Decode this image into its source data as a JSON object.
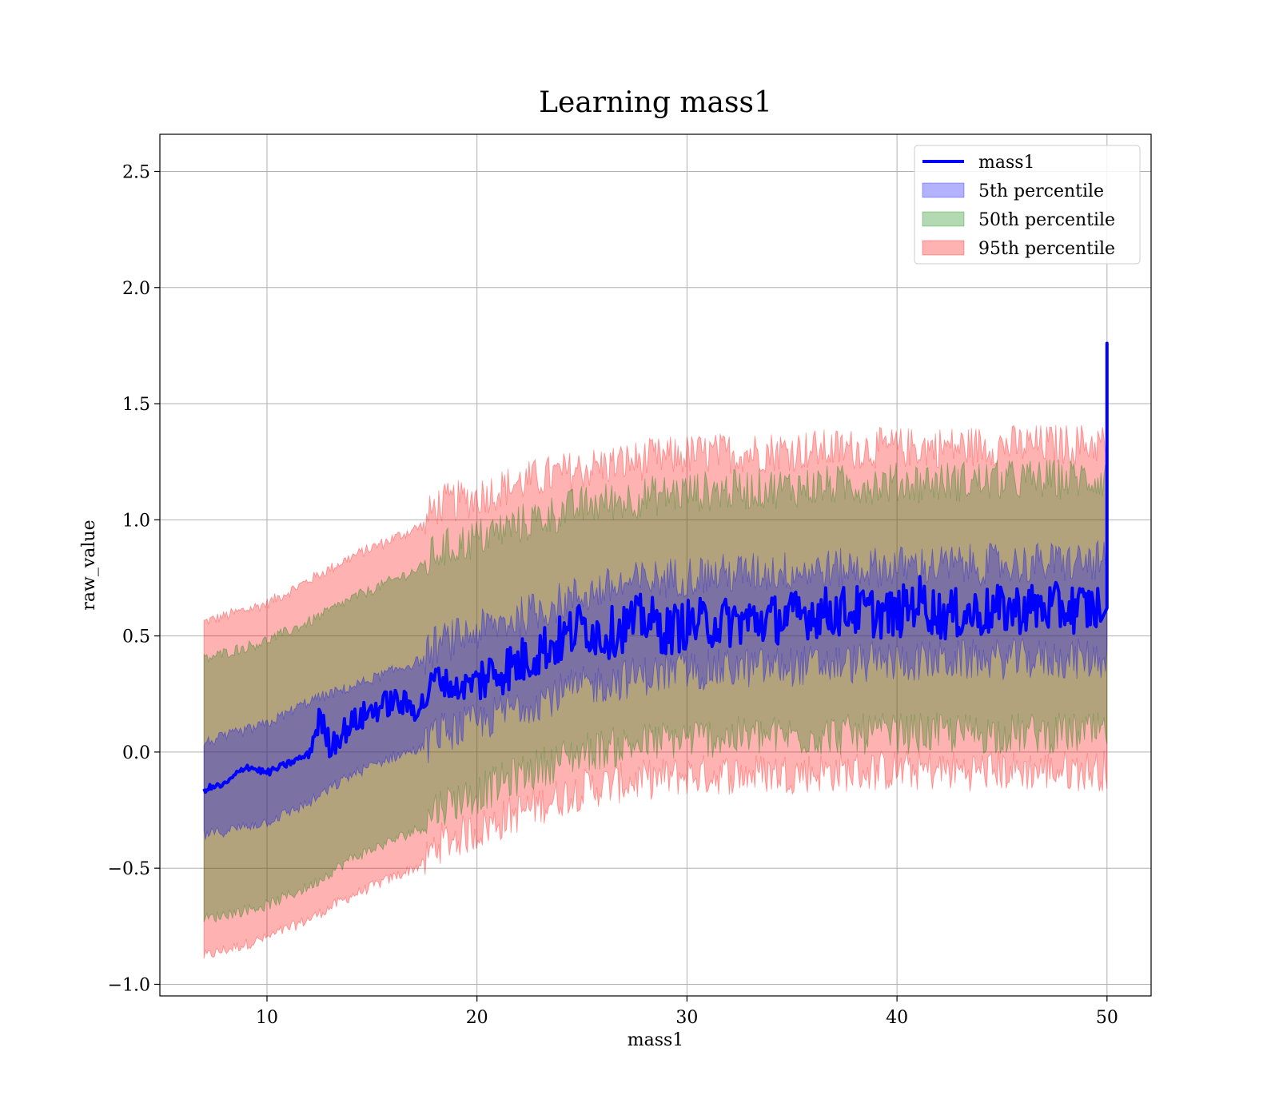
{
  "chart_data": {
    "type": "area",
    "title": "Learning mass1",
    "xlabel": "mass1",
    "ylabel": "raw_value",
    "xlim": [
      4.9,
      52.1
    ],
    "ylim": [
      -1.05,
      2.66
    ],
    "xticks": [
      10,
      20,
      30,
      40,
      50
    ],
    "xtick_labels": [
      "10",
      "20",
      "30",
      "40",
      "50"
    ],
    "yticks": [
      -1.0,
      -0.5,
      0.0,
      0.5,
      1.0,
      1.5,
      2.0,
      2.5
    ],
    "ytick_labels": [
      "−1.0",
      "−0.5",
      "0.0",
      "0.5",
      "1.0",
      "1.5",
      "2.0",
      "2.5"
    ],
    "grid": true,
    "legend_position": "top-right",
    "colors": {
      "line": "#0000ff",
      "band_5th": "#0000ff",
      "band_50th": "#008000",
      "band_95th": "#ff0000"
    },
    "series": [
      {
        "name": "mass1",
        "kind": "line",
        "x": [
          7,
          8,
          9,
          10,
          11,
          12,
          12.5,
          13,
          14,
          15,
          16,
          17,
          17.5,
          18,
          19,
          20,
          21,
          22,
          23,
          24,
          25,
          26,
          27,
          28,
          29,
          30,
          32,
          34,
          36,
          38,
          40,
          41,
          42,
          44,
          46,
          48,
          49.7,
          50
        ],
        "values": [
          -0.16,
          -0.14,
          -0.06,
          -0.09,
          -0.05,
          -0.01,
          0.15,
          0.03,
          0.12,
          0.18,
          0.22,
          0.19,
          0.21,
          0.33,
          0.27,
          0.31,
          0.35,
          0.38,
          0.44,
          0.48,
          0.55,
          0.5,
          0.54,
          0.58,
          0.52,
          0.55,
          0.56,
          0.57,
          0.6,
          0.61,
          0.59,
          0.66,
          0.59,
          0.6,
          0.62,
          0.62,
          0.62,
          1.76
        ]
      },
      {
        "name": "5th percentile",
        "kind": "band",
        "x": [
          7,
          10,
          12,
          14,
          16,
          17.5,
          18,
          20,
          22,
          25,
          28,
          30,
          35,
          40,
          45,
          50
        ],
        "lower": [
          -0.36,
          -0.3,
          -0.22,
          -0.1,
          -0.02,
          0.02,
          0.08,
          0.12,
          0.2,
          0.28,
          0.33,
          0.35,
          0.37,
          0.39,
          0.4,
          0.4
        ],
        "upper": [
          0.04,
          0.12,
          0.22,
          0.28,
          0.35,
          0.4,
          0.46,
          0.52,
          0.58,
          0.68,
          0.74,
          0.76,
          0.78,
          0.8,
          0.81,
          0.82
        ]
      },
      {
        "name": "50th percentile",
        "kind": "band",
        "x": [
          7,
          10,
          12,
          14,
          16,
          17.5,
          18,
          20,
          22,
          25,
          28,
          30,
          35,
          40,
          45,
          50
        ],
        "lower": [
          -0.72,
          -0.66,
          -0.58,
          -0.46,
          -0.38,
          -0.32,
          -0.24,
          -0.18,
          -0.1,
          0.0,
          0.04,
          0.06,
          0.07,
          0.08,
          0.08,
          0.08
        ],
        "upper": [
          0.4,
          0.48,
          0.56,
          0.66,
          0.74,
          0.8,
          0.86,
          0.92,
          0.98,
          1.06,
          1.1,
          1.12,
          1.14,
          1.16,
          1.17,
          1.18
        ]
      },
      {
        "name": "95th percentile",
        "kind": "band",
        "x": [
          7,
          10,
          12,
          14,
          16,
          17.5,
          18,
          20,
          22,
          25,
          28,
          30,
          35,
          40,
          45,
          50
        ],
        "lower": [
          -0.88,
          -0.8,
          -0.72,
          -0.62,
          -0.54,
          -0.48,
          -0.4,
          -0.34,
          -0.26,
          -0.16,
          -0.12,
          -0.1,
          -0.09,
          -0.08,
          -0.08,
          -0.08
        ],
        "upper": [
          0.56,
          0.64,
          0.74,
          0.84,
          0.92,
          0.98,
          1.06,
          1.1,
          1.16,
          1.22,
          1.26,
          1.28,
          1.3,
          1.31,
          1.32,
          1.33
        ]
      }
    ],
    "legend": [
      {
        "label": "mass1",
        "kind": "line"
      },
      {
        "label": "5th percentile",
        "kind": "patch"
      },
      {
        "label": "50th percentile",
        "kind": "patch"
      },
      {
        "label": "95th percentile",
        "kind": "patch"
      }
    ]
  }
}
